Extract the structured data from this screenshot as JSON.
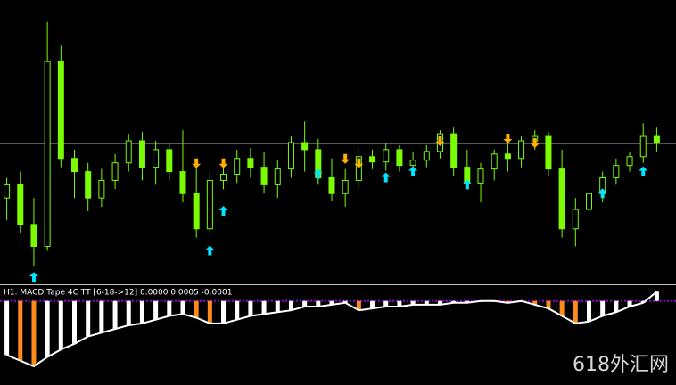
{
  "chart_data": [
    {
      "type": "candlestick",
      "ylim": [
        0,
        318
      ],
      "hline": 157,
      "color": "#7cfc00",
      "ohlc": [
        [
          95,
          118,
          70,
          110
        ],
        [
          110,
          125,
          55,
          65
        ],
        [
          65,
          95,
          18,
          40
        ],
        [
          40,
          295,
          35,
          250
        ],
        [
          250,
          268,
          130,
          140
        ],
        [
          140,
          150,
          95,
          125
        ],
        [
          125,
          135,
          80,
          95
        ],
        [
          95,
          128,
          85,
          115
        ],
        [
          115,
          145,
          105,
          135
        ],
        [
          135,
          168,
          125,
          160
        ],
        [
          160,
          170,
          115,
          130
        ],
        [
          130,
          160,
          110,
          150
        ],
        [
          150,
          158,
          115,
          125
        ],
        [
          125,
          172,
          90,
          100
        ],
        [
          100,
          135,
          50,
          60
        ],
        [
          60,
          125,
          55,
          115
        ],
        [
          115,
          130,
          105,
          122
        ],
        [
          122,
          150,
          112,
          140
        ],
        [
          140,
          152,
          118,
          130
        ],
        [
          130,
          148,
          100,
          110
        ],
        [
          110,
          138,
          95,
          128
        ],
        [
          128,
          165,
          118,
          158
        ],
        [
          158,
          182,
          125,
          150
        ],
        [
          150,
          162,
          110,
          118
        ],
        [
          118,
          140,
          92,
          100
        ],
        [
          100,
          128,
          85,
          115
        ],
        [
          115,
          152,
          105,
          142
        ],
        [
          142,
          150,
          128,
          136
        ],
        [
          136,
          158,
          126,
          150
        ],
        [
          150,
          155,
          125,
          132
        ],
        [
          132,
          148,
          120,
          138
        ],
        [
          138,
          155,
          130,
          148
        ],
        [
          148,
          172,
          140,
          168
        ],
        [
          168,
          175,
          120,
          130
        ],
        [
          130,
          150,
          105,
          112
        ],
        [
          112,
          135,
          90,
          128
        ],
        [
          128,
          150,
          115,
          145
        ],
        [
          145,
          158,
          125,
          140
        ],
        [
          140,
          165,
          130,
          160
        ],
        [
          160,
          172,
          150,
          165
        ],
        [
          165,
          170,
          120,
          128
        ],
        [
          128,
          150,
          50,
          60
        ],
        [
          60,
          95,
          40,
          82
        ],
        [
          82,
          110,
          72,
          100
        ],
        [
          100,
          125,
          90,
          118
        ],
        [
          118,
          140,
          110,
          132
        ],
        [
          132,
          148,
          125,
          142
        ],
        [
          142,
          180,
          135,
          165
        ],
        [
          165,
          175,
          148,
          158
        ]
      ],
      "up_arrows": [
        null,
        null,
        5,
        null,
        null,
        null,
        null,
        null,
        null,
        null,
        null,
        null,
        null,
        null,
        null,
        35,
        80,
        null,
        null,
        null,
        null,
        null,
        null,
        122,
        null,
        null,
        null,
        null,
        118,
        null,
        125,
        null,
        null,
        null,
        110,
        null,
        null,
        null,
        null,
        null,
        null,
        null,
        null,
        null,
        100,
        null,
        null,
        125,
        null
      ],
      "down_arrows": [
        null,
        null,
        null,
        null,
        null,
        null,
        null,
        null,
        null,
        null,
        null,
        null,
        null,
        null,
        135,
        null,
        135,
        null,
        null,
        null,
        null,
        null,
        null,
        null,
        null,
        140,
        135,
        null,
        null,
        null,
        null,
        null,
        160,
        null,
        null,
        null,
        null,
        163,
        null,
        158,
        null,
        null,
        null,
        null,
        null,
        null,
        null,
        null,
        null
      ],
      "up_color": "#00e5ff",
      "down_color": "#ffb000"
    },
    {
      "type": "bar",
      "title": "H1: MACD Tape 4C TT [6-18->12] 0.0000 0.0005 -0.0001",
      "ylim": [
        -0.0045,
        0.00075
      ],
      "rise_color": "#ffffff",
      "fall_color": "#ff8c1a",
      "zero_color": "#9400d3",
      "values": [
        -0.0029,
        -0.0032,
        -0.0035,
        -0.003,
        -0.0026,
        -0.0023,
        -0.0019,
        -0.0017,
        -0.0015,
        -0.0013,
        -0.0012,
        -0.001,
        -0.0008,
        -0.0007,
        -0.0009,
        -0.0012,
        -0.0012,
        -0.001,
        -0.0008,
        -0.0007,
        -0.0006,
        -0.0005,
        -0.0003,
        -0.0003,
        -0.0002,
        -0.0001,
        -0.0005,
        -0.0004,
        -0.0003,
        -0.0003,
        -0.0002,
        -0.0002,
        -0.0002,
        -0.0001,
        -0.0001,
        0,
        0,
        -0.0001,
        0,
        -0.0002,
        -0.0004,
        -0.0008,
        -0.0012,
        -0.0011,
        -0.0008,
        -0.0006,
        -0.0003,
        -0.0001,
        0.0005
      ]
    },
    {
      "watermark": "618外汇网"
    }
  ]
}
